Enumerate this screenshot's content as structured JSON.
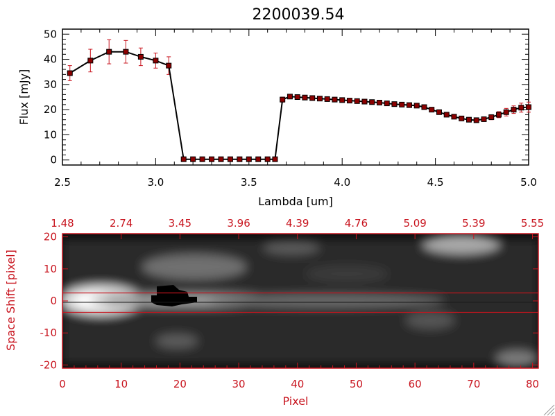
{
  "colors": {
    "accent_red": "#c8141e",
    "marker": "#8b0000",
    "line": "#000000"
  },
  "chart_data": [
    {
      "type": "line",
      "title": "2200039.54",
      "xlabel": "Lambda [um]",
      "ylabel": "Flux [mJy]",
      "xlim": [
        2.5,
        5.0
      ],
      "ylim": [
        -2,
        52
      ],
      "xticks": [
        "2.5",
        "3.0",
        "3.5",
        "4.0",
        "4.5",
        "5.0"
      ],
      "yticks": [
        "0",
        "10",
        "20",
        "30",
        "40",
        "50"
      ],
      "grid": false,
      "series": [
        {
          "x": [
            2.54,
            2.65,
            2.75,
            2.84,
            2.92,
            3.0,
            3.07,
            3.15,
            3.2,
            3.25,
            3.3,
            3.35,
            3.4,
            3.45,
            3.5,
            3.55,
            3.6,
            3.64,
            3.68,
            3.72,
            3.76,
            3.8,
            3.84,
            3.88,
            3.92,
            3.96,
            4.0,
            4.04,
            4.08,
            4.12,
            4.16,
            4.2,
            4.24,
            4.28,
            4.32,
            4.36,
            4.4,
            4.44,
            4.48,
            4.52,
            4.56,
            4.6,
            4.64,
            4.68,
            4.72,
            4.76,
            4.8,
            4.84,
            4.88,
            4.92,
            4.96,
            5.0
          ],
          "y": [
            34.5,
            39.5,
            43.0,
            43.0,
            41.0,
            39.5,
            37.5,
            0.3,
            0.3,
            0.3,
            0.3,
            0.3,
            0.3,
            0.3,
            0.3,
            0.3,
            0.3,
            0.3,
            24.0,
            25.2,
            25.0,
            24.8,
            24.6,
            24.4,
            24.2,
            24.0,
            23.8,
            23.6,
            23.4,
            23.2,
            23.0,
            22.8,
            22.5,
            22.2,
            22.0,
            21.8,
            21.6,
            21.0,
            20.0,
            19.0,
            18.0,
            17.2,
            16.5,
            16.0,
            15.8,
            16.2,
            17.0,
            18.0,
            19.0,
            20.0,
            20.8,
            21.0
          ],
          "yerr": [
            3.0,
            4.5,
            4.8,
            4.5,
            3.5,
            3.0,
            3.5,
            0,
            0,
            0,
            0,
            0,
            0,
            0,
            0,
            0,
            0,
            0,
            1.0,
            0.8,
            0.8,
            0.8,
            0.8,
            0.8,
            0.8,
            0.8,
            0.8,
            0.8,
            0.8,
            0.8,
            0.8,
            0.8,
            0.8,
            0.8,
            0.8,
            0.8,
            0.8,
            0.8,
            0.8,
            0.8,
            0.8,
            0.8,
            0.8,
            0.8,
            0.8,
            0.8,
            1.0,
            1.2,
            1.5,
            1.5,
            1.8,
            2.0
          ]
        }
      ]
    },
    {
      "type": "heatmap",
      "xlabel": "Pixel",
      "ylabel": "Space Shift [pixel]",
      "xlim": [
        0,
        81
      ],
      "ylim": [
        -21,
        21
      ],
      "xticks": [
        "0",
        "10",
        "20",
        "30",
        "40",
        "50",
        "60",
        "70",
        "80"
      ],
      "yticks": [
        "20",
        "10",
        "0",
        "-10",
        "-20"
      ],
      "top_axis_ticks": [
        "1.48",
        "2.74",
        "3.45",
        "3.96",
        "4.39",
        "4.76",
        "5.09",
        "5.39",
        "5.55"
      ],
      "extraction_band": [
        -3,
        3
      ],
      "colormap": "grayscale"
    }
  ]
}
